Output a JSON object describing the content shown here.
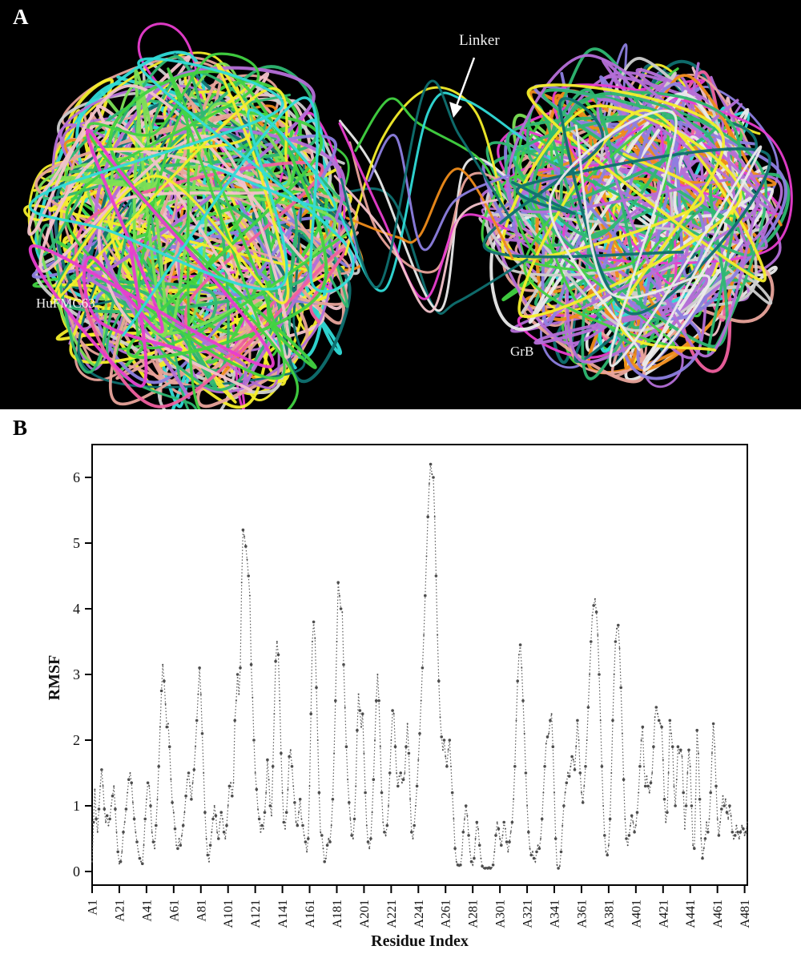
{
  "panel_a": {
    "label": "A",
    "background": "#000000",
    "annotations": {
      "linker": "Linker",
      "left_domain": "HuFMC63",
      "right_domain": "GrB"
    },
    "palette": [
      "#41d341",
      "#7ce055",
      "#2eb872",
      "#0f7070",
      "#30dcd8",
      "#f4ee2a",
      "#ef8c1a",
      "#e83dcf",
      "#f0609f",
      "#e9a49b",
      "#f3c3cb",
      "#8d7fe0",
      "#b56fd8",
      "#ebebeb",
      "#cfcfcf",
      "#41d341"
    ],
    "linker_colors": [
      "#0f7070",
      "#ebebeb",
      "#f4ee2a",
      "#41d341",
      "#30dcd8",
      "#e9a49b",
      "#e83dcf",
      "#ef8c1a",
      "#8d7fe0",
      "#f3c3cb",
      "#0f7070"
    ],
    "arrow_color": "#ffffff"
  },
  "panel_b": {
    "label": "B"
  },
  "chart_data": {
    "type": "scatter",
    "title": "",
    "xlabel": "Residue Index",
    "ylabel": "RMSF",
    "x_tick_labels": [
      "A1",
      "A21",
      "A41",
      "A61",
      "A81",
      "A101",
      "A121",
      "A141",
      "A161",
      "A181",
      "A201",
      "A221",
      "A241",
      "A261",
      "A281",
      "A301",
      "A321",
      "A341",
      "A361",
      "A381",
      "A401",
      "A421",
      "A441",
      "A461",
      "A481"
    ],
    "x_tick_step": 20,
    "y_tick_values": [
      0,
      1,
      2,
      3,
      4,
      5,
      6
    ],
    "xlim": [
      1,
      483
    ],
    "ylim": [
      0,
      6.5
    ],
    "grid": false,
    "marker_color": "#4d4d4d",
    "line_color": "#5a5a5a",
    "line_style": "dotted",
    "x_start": 1,
    "values": [
      0.15,
      0.75,
      1.25,
      0.8,
      0.6,
      0.95,
      1.3,
      1.55,
      1.3,
      0.95,
      0.75,
      0.85,
      0.7,
      0.8,
      1.0,
      1.15,
      1.3,
      0.95,
      0.6,
      0.3,
      0.12,
      0.15,
      0.3,
      0.6,
      0.75,
      0.95,
      1.2,
      1.4,
      1.5,
      1.35,
      1.05,
      0.8,
      0.6,
      0.45,
      0.3,
      0.2,
      0.15,
      0.12,
      0.4,
      0.8,
      1.1,
      1.35,
      1.3,
      1.0,
      0.6,
      0.45,
      0.35,
      0.7,
      1.1,
      1.6,
      2.2,
      2.75,
      3.15,
      2.9,
      2.55,
      2.2,
      2.25,
      1.9,
      1.4,
      1.05,
      0.9,
      0.65,
      0.4,
      0.35,
      0.5,
      0.4,
      0.55,
      0.7,
      0.9,
      1.15,
      1.4,
      1.5,
      1.3,
      1.1,
      1.35,
      1.55,
      1.9,
      2.3,
      2.7,
      3.1,
      2.7,
      2.1,
      1.5,
      0.9,
      0.5,
      0.25,
      0.15,
      0.4,
      0.6,
      0.8,
      1.0,
      0.85,
      0.6,
      0.5,
      0.75,
      0.9,
      0.8,
      0.6,
      0.5,
      0.7,
      1.0,
      1.3,
      1.35,
      1.15,
      1.35,
      2.3,
      2.6,
      3.0,
      2.7,
      3.1,
      4.4,
      5.2,
      5.1,
      4.95,
      4.75,
      4.5,
      4.2,
      3.15,
      2.65,
      2.0,
      1.5,
      1.25,
      0.95,
      0.8,
      0.6,
      0.7,
      0.65,
      0.9,
      1.2,
      1.7,
      1.4,
      1.0,
      0.85,
      1.6,
      2.4,
      3.2,
      3.5,
      3.3,
      2.6,
      1.8,
      1.2,
      0.75,
      0.65,
      0.9,
      1.25,
      1.75,
      1.85,
      1.6,
      1.3,
      1.05,
      0.75,
      0.7,
      0.9,
      1.1,
      0.8,
      0.7,
      0.55,
      0.45,
      0.3,
      0.5,
      1.3,
      2.4,
      3.5,
      3.8,
      3.55,
      2.8,
      2.0,
      1.2,
      0.6,
      0.55,
      0.35,
      0.15,
      0.2,
      0.4,
      0.5,
      0.45,
      0.7,
      1.1,
      1.8,
      2.6,
      3.5,
      4.4,
      4.2,
      4.0,
      3.95,
      3.15,
      2.5,
      1.9,
      1.4,
      1.05,
      0.8,
      0.55,
      0.5,
      0.8,
      1.3,
      2.15,
      2.7,
      2.45,
      2.2,
      2.4,
      1.8,
      1.2,
      0.7,
      0.45,
      0.35,
      0.5,
      0.9,
      1.4,
      2.0,
      2.6,
      3.0,
      2.6,
      1.9,
      1.2,
      0.75,
      0.6,
      0.55,
      0.7,
      1.0,
      1.5,
      2.0,
      2.45,
      2.4,
      1.9,
      1.5,
      1.3,
      1.45,
      1.5,
      1.35,
      1.4,
      1.5,
      1.9,
      2.25,
      1.8,
      1.1,
      0.6,
      0.5,
      0.7,
      1.0,
      1.3,
      1.7,
      2.1,
      2.6,
      3.1,
      3.6,
      4.2,
      4.8,
      5.4,
      5.9,
      6.2,
      6.05,
      6.0,
      5.4,
      4.5,
      3.6,
      2.9,
      2.35,
      2.05,
      1.85,
      2.0,
      1.75,
      1.6,
      1.85,
      2.0,
      1.6,
      1.2,
      0.8,
      0.35,
      0.15,
      0.1,
      0.08,
      0.1,
      0.25,
      0.6,
      0.8,
      1.0,
      0.85,
      0.55,
      0.3,
      0.15,
      0.1,
      0.2,
      0.5,
      0.75,
      0.65,
      0.4,
      0.2,
      0.08,
      0.05,
      0.05,
      0.06,
      0.05,
      0.07,
      0.05,
      0.06,
      0.1,
      0.3,
      0.55,
      0.75,
      0.65,
      0.5,
      0.4,
      0.55,
      0.75,
      0.65,
      0.45,
      0.3,
      0.45,
      0.6,
      0.75,
      1.1,
      1.6,
      2.3,
      2.9,
      3.3,
      3.45,
      3.1,
      2.6,
      2.1,
      1.5,
      1.0,
      0.6,
      0.35,
      0.25,
      0.3,
      0.2,
      0.15,
      0.3,
      0.4,
      0.35,
      0.5,
      0.8,
      1.2,
      1.6,
      1.95,
      2.05,
      2.1,
      2.3,
      2.4,
      1.9,
      1.2,
      0.5,
      0.1,
      0.05,
      0.08,
      0.3,
      0.7,
      1.0,
      1.2,
      1.35,
      1.5,
      1.45,
      1.6,
      1.75,
      1.7,
      1.55,
      1.9,
      2.3,
      2.0,
      1.5,
      1.2,
      1.05,
      1.3,
      1.6,
      2.0,
      2.5,
      3.0,
      3.5,
      3.9,
      4.05,
      4.15,
      3.95,
      3.6,
      3.0,
      2.3,
      1.6,
      1.0,
      0.55,
      0.3,
      0.25,
      0.4,
      0.8,
      1.5,
      2.3,
      3.0,
      3.5,
      3.7,
      3.75,
      3.4,
      2.8,
      2.1,
      1.4,
      0.8,
      0.5,
      0.4,
      0.55,
      0.7,
      0.85,
      0.75,
      0.6,
      0.7,
      0.9,
      1.2,
      1.6,
      2.0,
      2.2,
      1.6,
      1.3,
      1.45,
      1.3,
      1.2,
      1.35,
      1.5,
      1.9,
      2.35,
      2.5,
      2.4,
      2.3,
      2.25,
      2.2,
      1.7,
      1.1,
      0.75,
      0.9,
      1.5,
      2.3,
      2.1,
      1.9,
      1.3,
      1.0,
      1.4,
      1.9,
      1.8,
      1.85,
      1.75,
      1.2,
      0.65,
      1.0,
      1.5,
      1.85,
      1.6,
      1.0,
      0.4,
      0.35,
      1.1,
      2.15,
      1.8,
      1.1,
      0.5,
      0.2,
      0.35,
      0.5,
      0.75,
      0.6,
      0.8,
      1.2,
      1.8,
      2.25,
      1.9,
      1.3,
      0.8,
      0.55,
      0.75,
      0.95,
      1.15,
      1.0,
      1.1,
      0.9,
      0.8,
      1.0,
      0.85,
      0.6,
      0.5,
      0.55,
      0.7,
      0.6,
      0.5,
      0.6,
      0.7,
      0.65,
      0.55,
      0.6,
      0.75
    ]
  }
}
